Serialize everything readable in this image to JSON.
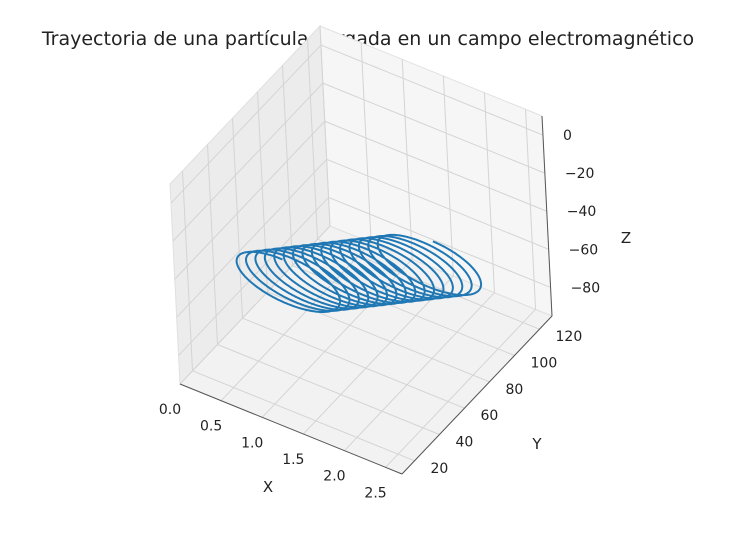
{
  "chart_data": {
    "type": "line",
    "projection": "3d",
    "title": "Trayectoria de una partícula cargada en un campo electromagnético",
    "xlabel": "X",
    "ylabel": "Y",
    "zlabel": "Z",
    "xlim": [
      0.0,
      2.7
    ],
    "ylim": [
      10,
      130
    ],
    "zlim": [
      -95,
      10
    ],
    "x_ticks": [
      "0.0",
      "0.5",
      "1.0",
      "1.5",
      "2.0",
      "2.5"
    ],
    "y_ticks": [
      "20",
      "40",
      "60",
      "80",
      "100",
      "120"
    ],
    "z_ticks": [
      "0",
      "−20",
      "−40",
      "−60",
      "−80"
    ],
    "grid": true,
    "series": [
      {
        "color": "#1f77b4",
        "shape": "helix",
        "turns": 16,
        "center_x": 1.35,
        "center_y_range": [
          10,
          125
        ],
        "center_z_range": [
          -18,
          -88
        ],
        "radius_x": 0.6,
        "radius_z": 12
      }
    ]
  }
}
